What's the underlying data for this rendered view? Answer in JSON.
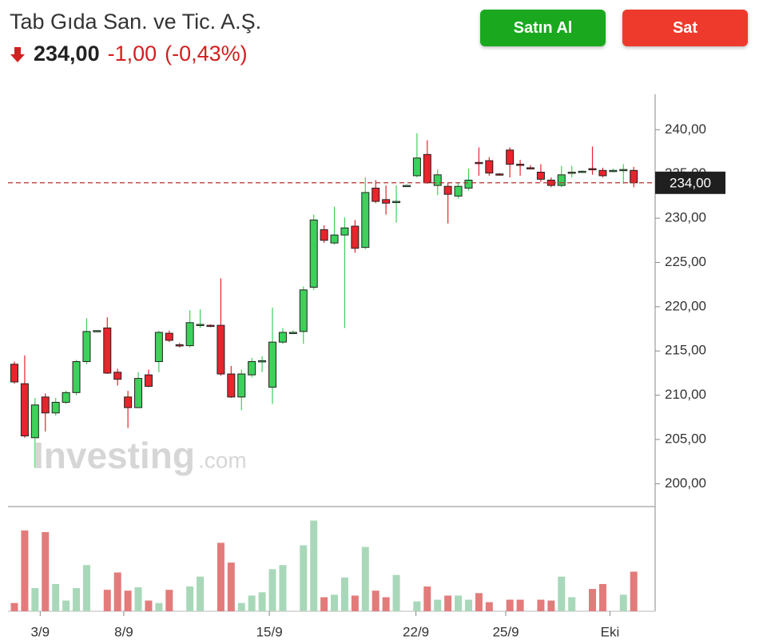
{
  "header": {
    "title": "Tab Gıda San. ve Tic. A.Ş.",
    "price": "234,00",
    "change": "-1,00",
    "change_percent": "(-0,43%)",
    "buy": "Satın Al",
    "sell": "Sat"
  },
  "chart_data": {
    "type": "candlestick",
    "watermark": {
      "brand": "Investing",
      "suffix": ".com"
    },
    "up_color": "#3dd05a",
    "down_color": "#e8242c",
    "volume_up_color": "#a8d8b9",
    "volume_down_color": "#e37b7b",
    "open": [
      213.5,
      211.3,
      205.2,
      209.8,
      208.0,
      209.2,
      210.3,
      213.8,
      217.2,
      217.6,
      212.6,
      209.8,
      208.6,
      212.3,
      213.8,
      217.0,
      215.7,
      215.6,
      218.0,
      217.9,
      217.9,
      212.4,
      209.8,
      212.3,
      213.8,
      210.9,
      216.0,
      217.1,
      217.2,
      222.2,
      228.7,
      227.2,
      228.1,
      229.1,
      226.7,
      233.4,
      232.1,
      231.9,
      233.7,
      234.8,
      237.2,
      233.7,
      233.6,
      232.5,
      233.4,
      236.3,
      236.5,
      235.0,
      237.7,
      236.1,
      235.7,
      235.2,
      234.3,
      233.7,
      235.1,
      235.3,
      235.6,
      235.4,
      235.4,
      235.4,
      235.4
    ],
    "high": [
      213.8,
      214.5,
      209.7,
      210.2,
      209.7,
      210.5,
      214.0,
      218.7,
      217.3,
      218.8,
      213.0,
      210.5,
      212.6,
      212.9,
      217.3,
      217.3,
      215.9,
      219.6,
      219.7,
      218.0,
      223.2,
      213.3,
      212.9,
      214.2,
      214.4,
      219.9,
      217.6,
      217.3,
      222.3,
      230.4,
      229.2,
      231.3,
      230.1,
      229.8,
      234.6,
      234.3,
      233.7,
      233.7,
      233.8,
      239.6,
      238.8,
      235.5,
      234.0,
      234.0,
      235.6,
      238.0,
      236.9,
      235.1,
      238.0,
      236.6,
      236.0,
      236.1,
      234.6,
      235.9,
      235.9,
      235.4,
      238.1,
      235.7,
      235.6,
      236.1,
      235.8
    ],
    "low": [
      211.3,
      205.2,
      201.8,
      205.9,
      207.7,
      209.0,
      210.0,
      213.5,
      217.1,
      212.4,
      211.1,
      206.3,
      208.6,
      210.9,
      212.6,
      216.0,
      215.4,
      215.4,
      217.6,
      217.7,
      212.2,
      209.7,
      208.3,
      212.0,
      212.6,
      209.0,
      215.8,
      216.9,
      215.8,
      221.9,
      227.2,
      227.0,
      217.6,
      226.1,
      226.5,
      231.7,
      230.4,
      229.5,
      233.6,
      234.6,
      233.9,
      232.6,
      229.4,
      232.2,
      233.1,
      234.8,
      234.8,
      234.8,
      234.6,
      234.8,
      235.5,
      234.1,
      233.5,
      233.5,
      234.6,
      235.2,
      234.9,
      234.6,
      235.2,
      233.9,
      233.5
    ],
    "close": [
      211.5,
      205.4,
      208.9,
      208.0,
      209.2,
      210.3,
      213.8,
      217.2,
      217.3,
      212.5,
      211.8,
      208.6,
      211.9,
      211.0,
      217.1,
      216.2,
      215.6,
      218.2,
      218.0,
      217.8,
      212.4,
      209.8,
      212.4,
      213.8,
      213.9,
      216.0,
      217.1,
      217.1,
      221.9,
      229.8,
      227.5,
      228.1,
      228.9,
      226.6,
      232.9,
      231.9,
      231.7,
      231.9,
      233.7,
      236.8,
      234.0,
      234.9,
      232.7,
      233.6,
      234.3,
      236.2,
      235.1,
      234.9,
      236.1,
      236.0,
      235.6,
      234.4,
      233.7,
      234.9,
      235.2,
      235.3,
      235.5,
      234.8,
      235.4,
      235.5,
      234.0
    ],
    "volume": [
      10,
      98,
      28,
      96,
      33,
      13,
      28,
      56,
      null,
      26,
      47,
      25,
      29,
      13,
      10,
      26,
      null,
      30,
      42,
      null,
      83,
      59,
      10,
      19,
      23,
      51,
      56,
      null,
      80,
      110,
      17,
      20,
      41,
      19,
      78,
      25,
      17,
      44,
      null,
      12,
      30,
      14,
      19,
      19,
      14,
      22,
      11,
      null,
      14,
      14,
      null,
      14,
      13,
      42,
      17,
      null,
      27,
      33,
      null,
      20,
      48
    ],
    "volume_lim": [
      0,
      125
    ],
    "ylim": [
      197.6,
      244.0
    ],
    "yticks": [
      {
        "value": 200,
        "label": "200,00"
      },
      {
        "value": 205,
        "label": "205,00"
      },
      {
        "value": 210,
        "label": "210,00"
      },
      {
        "value": 215,
        "label": "215,00"
      },
      {
        "value": 220,
        "label": "220,00"
      },
      {
        "value": 225,
        "label": "225,00"
      },
      {
        "value": 230,
        "label": "230,00"
      },
      {
        "value": 235,
        "label": "235,00"
      },
      {
        "value": 240,
        "label": "240,00"
      }
    ],
    "xticks": [
      {
        "value": 2.5,
        "label": "3/9"
      },
      {
        "value": 10.6,
        "label": "8/9"
      },
      {
        "value": 24.7,
        "label": "15/9"
      },
      {
        "value": 38.9,
        "label": "22/9"
      },
      {
        "value": 47.6,
        "label": "25/9"
      },
      {
        "value": 57.7,
        "label": "Eki"
      }
    ],
    "current_price": {
      "value": 234,
      "label": "234,00"
    }
  }
}
